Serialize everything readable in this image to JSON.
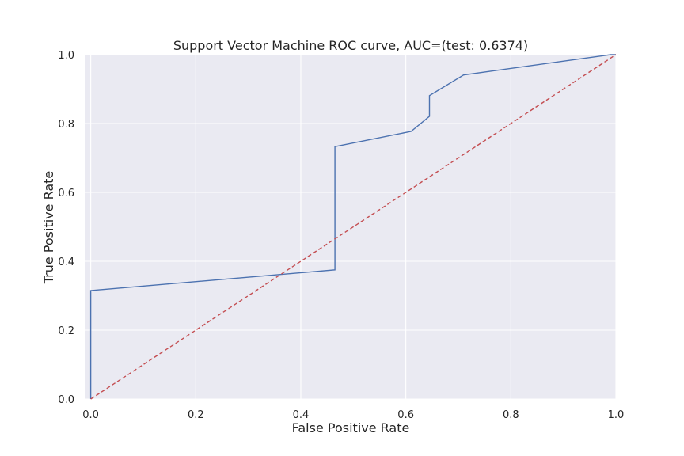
{
  "chart_data": {
    "type": "line",
    "title": "Support Vector Machine ROC curve, AUC=(test: 0.6374)",
    "xlabel": "False Positive Rate",
    "ylabel": "True Positive Rate",
    "xlim": [
      -0.01,
      1.0
    ],
    "ylim": [
      0.0,
      1.0
    ],
    "xticks": [
      "0.0",
      "0.2",
      "0.4",
      "0.6",
      "0.8",
      "1.0"
    ],
    "yticks": [
      "0.0",
      "0.2",
      "0.4",
      "0.6",
      "0.8",
      "1.0"
    ],
    "grid": true,
    "background_color": "#eaeaf2",
    "series": [
      {
        "style": "solid",
        "color": "#4c72b0",
        "x": [
          0.0,
          0.0,
          0.465,
          0.465,
          0.61,
          0.645,
          0.645,
          0.71,
          0.99,
          1.0
        ],
        "y": [
          0.0,
          0.315,
          0.375,
          0.733,
          0.777,
          0.821,
          0.881,
          0.941,
          1.0,
          1.0
        ]
      },
      {
        "style": "dashed",
        "color": "#c44e52",
        "x": [
          0.0,
          1.0
        ],
        "y": [
          0.0,
          1.0
        ]
      }
    ]
  }
}
